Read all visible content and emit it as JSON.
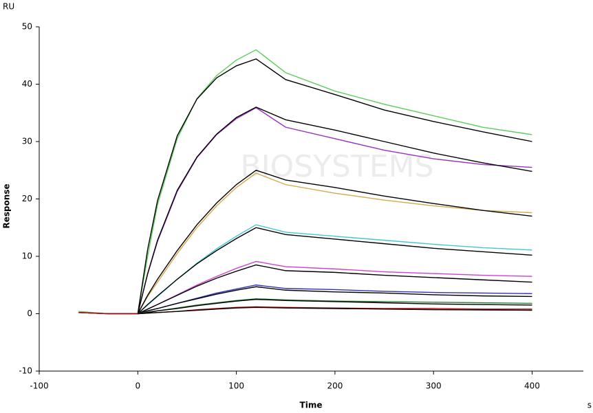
{
  "chart_data": {
    "type": "line",
    "y_unit": "RU",
    "x_unit": "s",
    "ylabel": "Response",
    "xlabel": "Time",
    "watermark": "BIOSYSTEMS",
    "x": [
      -60,
      -30,
      0,
      10,
      20,
      40,
      60,
      80,
      100,
      120,
      150,
      200,
      250,
      300,
      350,
      400
    ],
    "xlim": [
      -100,
      452
    ],
    "xticks": [
      -100,
      0,
      100,
      200,
      300,
      400
    ],
    "ylim": [
      -10,
      50
    ],
    "yticks": [
      -10,
      0,
      10,
      20,
      30,
      40,
      50
    ],
    "series": [
      {
        "color": "#5ccc5c",
        "values": [
          0.4,
          0,
          0,
          10,
          19,
          30.5,
          37.5,
          41.5,
          44.2,
          46,
          42,
          38.8,
          36.5,
          34.5,
          32.5,
          31.2
        ]
      },
      {
        "color": "#000000",
        "values": [
          null,
          null,
          0,
          11.2,
          19.7,
          31,
          37.4,
          41.1,
          43.2,
          44.4,
          40.8,
          38.2,
          35.5,
          33.5,
          31.7,
          30
        ]
      },
      {
        "color": "#9b30c0",
        "values": [
          0.2,
          0,
          0,
          6.9,
          12.6,
          21.3,
          27.2,
          31.2,
          34,
          35.9,
          32.5,
          30.5,
          28.5,
          27,
          26,
          25.5
        ]
      },
      {
        "color": "#000000",
        "values": [
          null,
          null,
          0,
          7,
          12.8,
          21.5,
          27.3,
          31.3,
          34.2,
          36,
          33.8,
          32,
          30,
          28,
          26.3,
          24.8
        ]
      },
      {
        "color": "#d4a84b",
        "values": [
          0.2,
          0,
          0,
          3,
          5.5,
          10.5,
          15,
          18.8,
          22,
          24.5,
          22.5,
          21,
          19.8,
          18.8,
          18,
          17.6
        ]
      },
      {
        "color": "#000000",
        "values": [
          null,
          null,
          0,
          3.2,
          6,
          11,
          15.5,
          19.3,
          22.5,
          25,
          23.3,
          22,
          20.5,
          19.2,
          18,
          17
        ]
      },
      {
        "color": "#40c8d0",
        "values": [
          0.2,
          0,
          0,
          1.5,
          3,
          6,
          8.8,
          11.3,
          13.5,
          15.5,
          14.2,
          13.5,
          12.8,
          12.1,
          11.5,
          11.1
        ]
      },
      {
        "color": "#000000",
        "values": [
          null,
          null,
          0,
          1.6,
          3.1,
          6,
          8.7,
          11,
          13.1,
          15,
          13.8,
          13,
          12.2,
          11.4,
          10.8,
          10.2
        ]
      },
      {
        "color": "#d040d0",
        "values": [
          0.2,
          0,
          0,
          0.8,
          1.6,
          3.3,
          5,
          6.5,
          7.9,
          9.1,
          8.2,
          7.8,
          7.3,
          7,
          6.7,
          6.5
        ]
      },
      {
        "color": "#000000",
        "values": [
          null,
          null,
          0,
          0.8,
          1.6,
          3.2,
          4.8,
          6.2,
          7.4,
          8.5,
          7.5,
          7.2,
          6.7,
          6.3,
          5.9,
          5.5
        ]
      },
      {
        "color": "#3030c0",
        "values": [
          0.2,
          0,
          0,
          0.5,
          0.9,
          1.8,
          2.7,
          3.6,
          4.3,
          5,
          4.4,
          4.2,
          3.9,
          3.7,
          3.6,
          3.5
        ]
      },
      {
        "color": "#000000",
        "values": [
          null,
          null,
          0,
          0.5,
          0.9,
          1.8,
          2.6,
          3.4,
          4.1,
          4.7,
          4.1,
          3.8,
          3.6,
          3.3,
          3.1,
          3
        ]
      },
      {
        "color": "#2e7d32",
        "values": [
          0.2,
          0,
          0,
          0.3,
          0.5,
          1,
          1.5,
          1.9,
          2.3,
          2.6,
          2.4,
          2.2,
          2.1,
          2,
          1.9,
          1.8
        ]
      },
      {
        "color": "#000000",
        "values": [
          null,
          null,
          0,
          0.2,
          0.5,
          0.9,
          1.4,
          1.8,
          2.2,
          2.5,
          2.3,
          2.1,
          1.9,
          1.7,
          1.6,
          1.5
        ]
      },
      {
        "color": "#c00000",
        "values": [
          0.2,
          0,
          0,
          0.1,
          0.2,
          0.4,
          0.7,
          0.9,
          1.1,
          1.2,
          1.1,
          1,
          0.9,
          0.9,
          0.8,
          0.8
        ]
      },
      {
        "color": "#000000",
        "values": [
          null,
          null,
          0,
          0.1,
          0.2,
          0.4,
          0.6,
          0.8,
          1,
          1.1,
          1,
          0.9,
          0.8,
          0.7,
          0.65,
          0.6
        ]
      }
    ]
  }
}
